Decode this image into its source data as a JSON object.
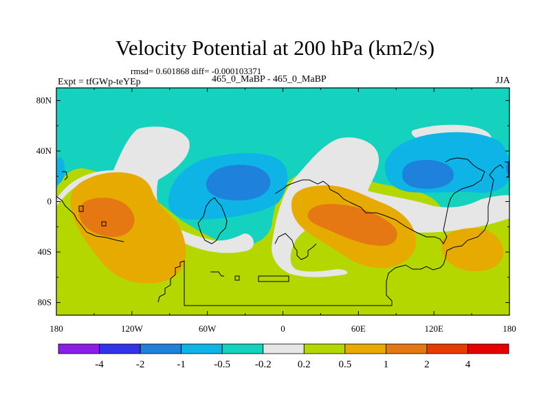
{
  "title": "Velocity Potential at 200 hPa (km2/s)",
  "stats": "rmsd= 0.601868 diff= -0.000103371",
  "experiment": "Expt = tfGWp-teYEp",
  "case_label": "465_0_MaBP - 465_0_MaBP",
  "season": "JJA",
  "axes": {
    "lon_labels": [
      "180",
      "120W",
      "60W",
      "0",
      "60E",
      "120E",
      "180"
    ],
    "lat_labels": [
      "80N",
      "40N",
      "0",
      "40S",
      "80S"
    ]
  },
  "colorbar": {
    "colors": [
      "#8a1ee6",
      "#3232e6",
      "#1e82dc",
      "#0fb4e6",
      "#14d2be",
      "#e6e6e6",
      "#b4d700",
      "#e6aa00",
      "#e67814",
      "#e63c00",
      "#e60000"
    ],
    "labels": [
      "-4",
      "-2",
      "-1",
      "-0.5",
      "-0.2",
      "0.2",
      "0.5",
      "1",
      "2",
      "4"
    ]
  },
  "field_colors": {
    "background": "#b4d700",
    "north": "#14d2be",
    "neutral": "#e6e6e6",
    "neg1": "#0fb4e6",
    "neg2": "#1e82dc",
    "pos1": "#e6aa00",
    "pos2": "#e67814"
  }
}
